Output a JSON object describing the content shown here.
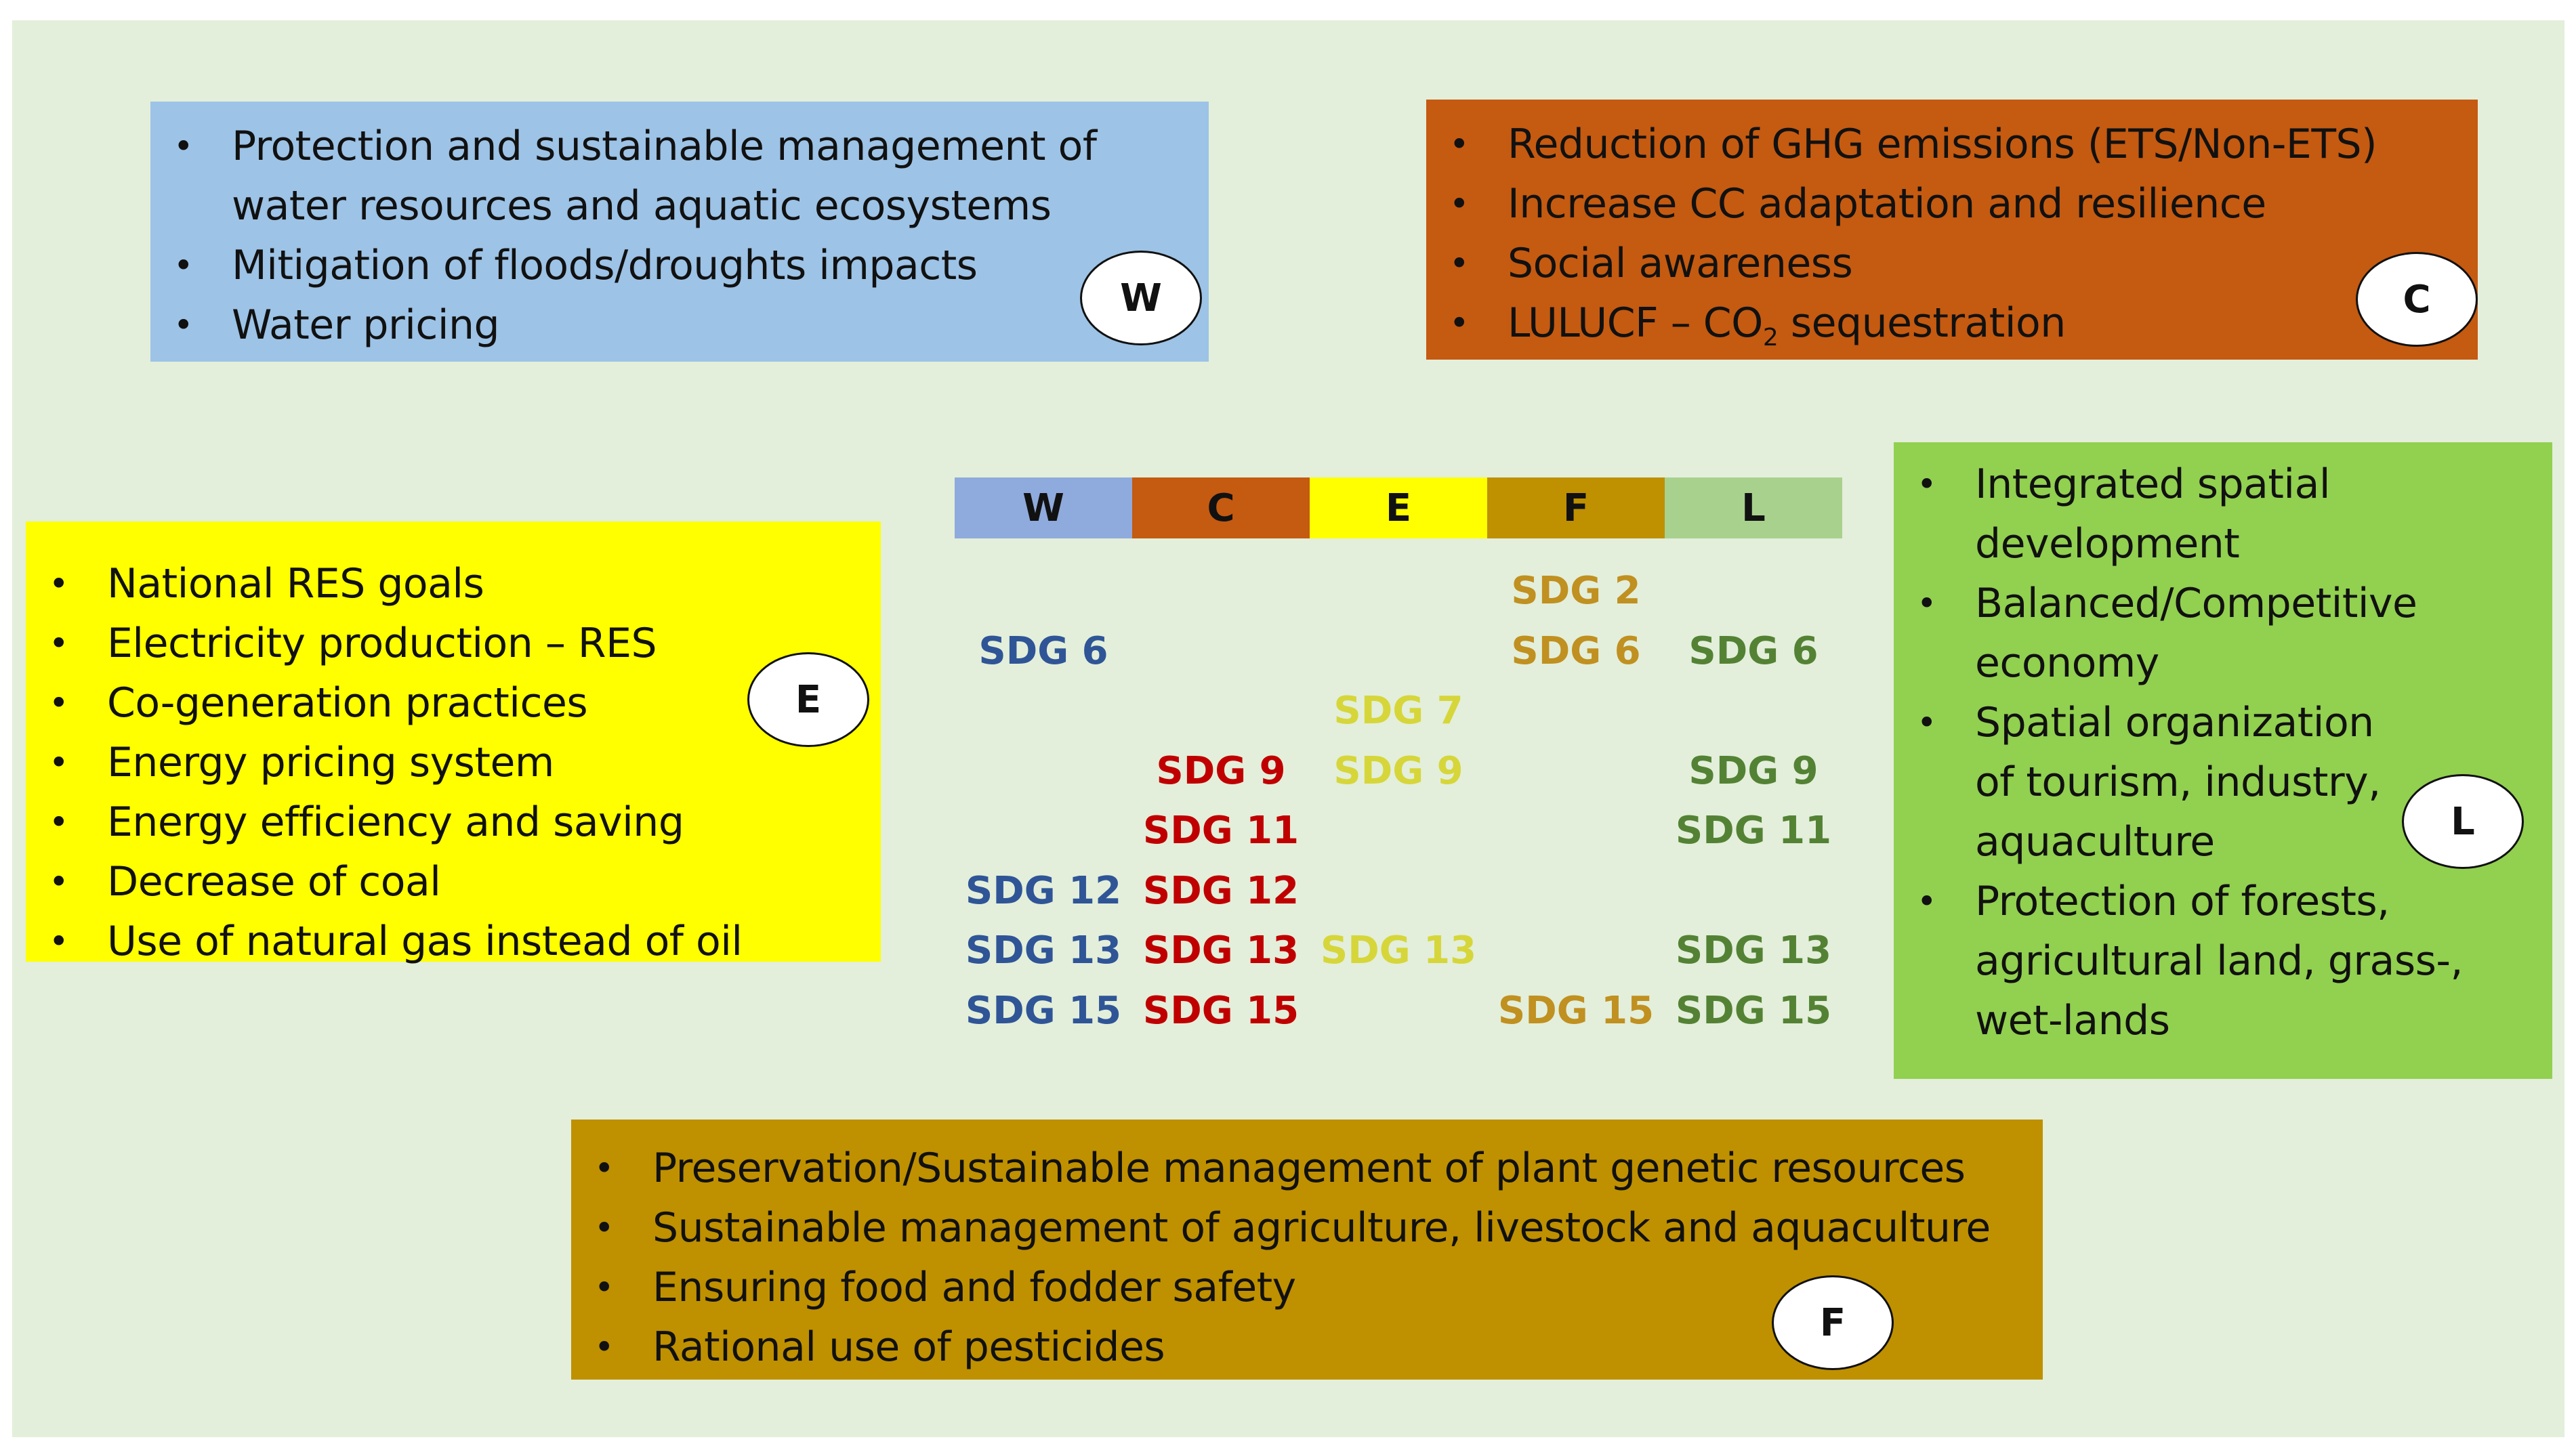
{
  "colors": {
    "background": "#e3efda",
    "W": "#9dc3e6",
    "C": "#c55a11",
    "E": "#ffff00",
    "F": "#bf9000",
    "L": "#92d050",
    "header_W": "#8faadc",
    "header_C": "#c55a11",
    "header_E": "#ffff00",
    "header_F": "#bf9000",
    "header_L": "#a9d18e",
    "sdg_W": "#2f5597",
    "sdg_C": "#c00000",
    "sdg_E": "#d6d63a",
    "sdg_F": "#c09020",
    "sdg_L": "#548235"
  },
  "water": {
    "label": "W",
    "items": [
      "Protection and sustainable management of water resources and aquatic ecosystems",
      "Mitigation of floods/droughts impacts",
      "Water pricing"
    ]
  },
  "climate": {
    "label": "C",
    "items": [
      "Reduction of GHG emissions (ETS/Non-ETS)",
      "Increase CC adaptation and resilience",
      "Social awareness",
      "LULUCF – CO2 sequestration"
    ]
  },
  "energy": {
    "label": "E",
    "items": [
      "National RES goals",
      "Electricity production – RES",
      "Co-generation practices",
      "Energy pricing system",
      "Energy efficiency and saving",
      "Decrease of coal",
      "Use of natural gas instead of oil"
    ]
  },
  "land": {
    "label": "L",
    "items": [
      "Integrated spatial development",
      "Balanced/Competitive economy",
      "Spatial organization of tourism, industry, aquaculture",
      "Protection of forests, agricultural land, grass-, wet-lands"
    ]
  },
  "food": {
    "label": "F",
    "items": [
      "Preservation/Sustainable management of plant genetic resources",
      "Sustainable management of agriculture, livestock and aquaculture",
      "Ensuring food and fodder safety",
      "Rational use of pesticides"
    ]
  },
  "table": {
    "headers": [
      "W",
      "C",
      "E",
      "F",
      "L"
    ],
    "rows": [
      [
        "",
        "",
        "",
        "SDG 2",
        ""
      ],
      [
        "SDG 6",
        "",
        "",
        "SDG 6",
        "SDG 6"
      ],
      [
        "",
        "",
        "SDG 7",
        "",
        ""
      ],
      [
        "",
        "SDG 9",
        "SDG 9",
        "",
        "SDG 9"
      ],
      [
        "",
        "SDG 11",
        "",
        "",
        "SDG 11"
      ],
      [
        "SDG 12",
        "SDG 12",
        "",
        "",
        ""
      ],
      [
        "SDG 13",
        "SDG 13",
        "SDG 13",
        "",
        "SDG 13"
      ],
      [
        "SDG 15",
        "SDG 15",
        "",
        "SDG 15",
        "SDG 15"
      ]
    ]
  }
}
